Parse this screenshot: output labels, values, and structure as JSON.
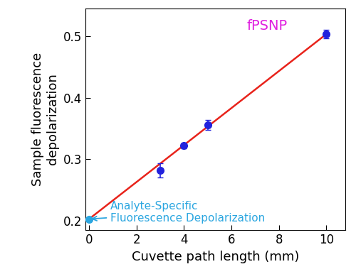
{
  "chart_data": {
    "type": "scatter",
    "x_label": "Cuvette path length (mm)",
    "y_label": "Sample fluorescence\ndepolarization",
    "xlim": [
      -0.15,
      10.8
    ],
    "ylim": [
      0.185,
      0.545
    ],
    "xticks": [
      0,
      2,
      4,
      6,
      8,
      10
    ],
    "yticks": [
      0.2,
      0.3,
      0.4,
      0.5
    ],
    "grid": false,
    "series": [
      {
        "type": "line",
        "x": [
          0,
          10
        ],
        "values": [
          0.203,
          0.503
        ],
        "color": "#e8231b",
        "line_style": "solid"
      },
      {
        "type": "scatter",
        "x": [
          3,
          4,
          5,
          10
        ],
        "values": [
          0.282,
          0.322,
          0.356,
          0.503
        ],
        "errors": [
          0.012,
          0.004,
          0.008,
          0.007
        ],
        "color": "#2222dd",
        "marker": "o"
      },
      {
        "type": "scatter",
        "x": [
          0
        ],
        "values": [
          0.203
        ],
        "color": "#2aa6e0",
        "marker": "o"
      }
    ],
    "annotations": [
      {
        "text": "fPSNP",
        "color": "#e020e0"
      },
      {
        "text": "Analyte-Specific\nFluorescence Depolarization",
        "color": "#2aa6e0"
      }
    ]
  }
}
